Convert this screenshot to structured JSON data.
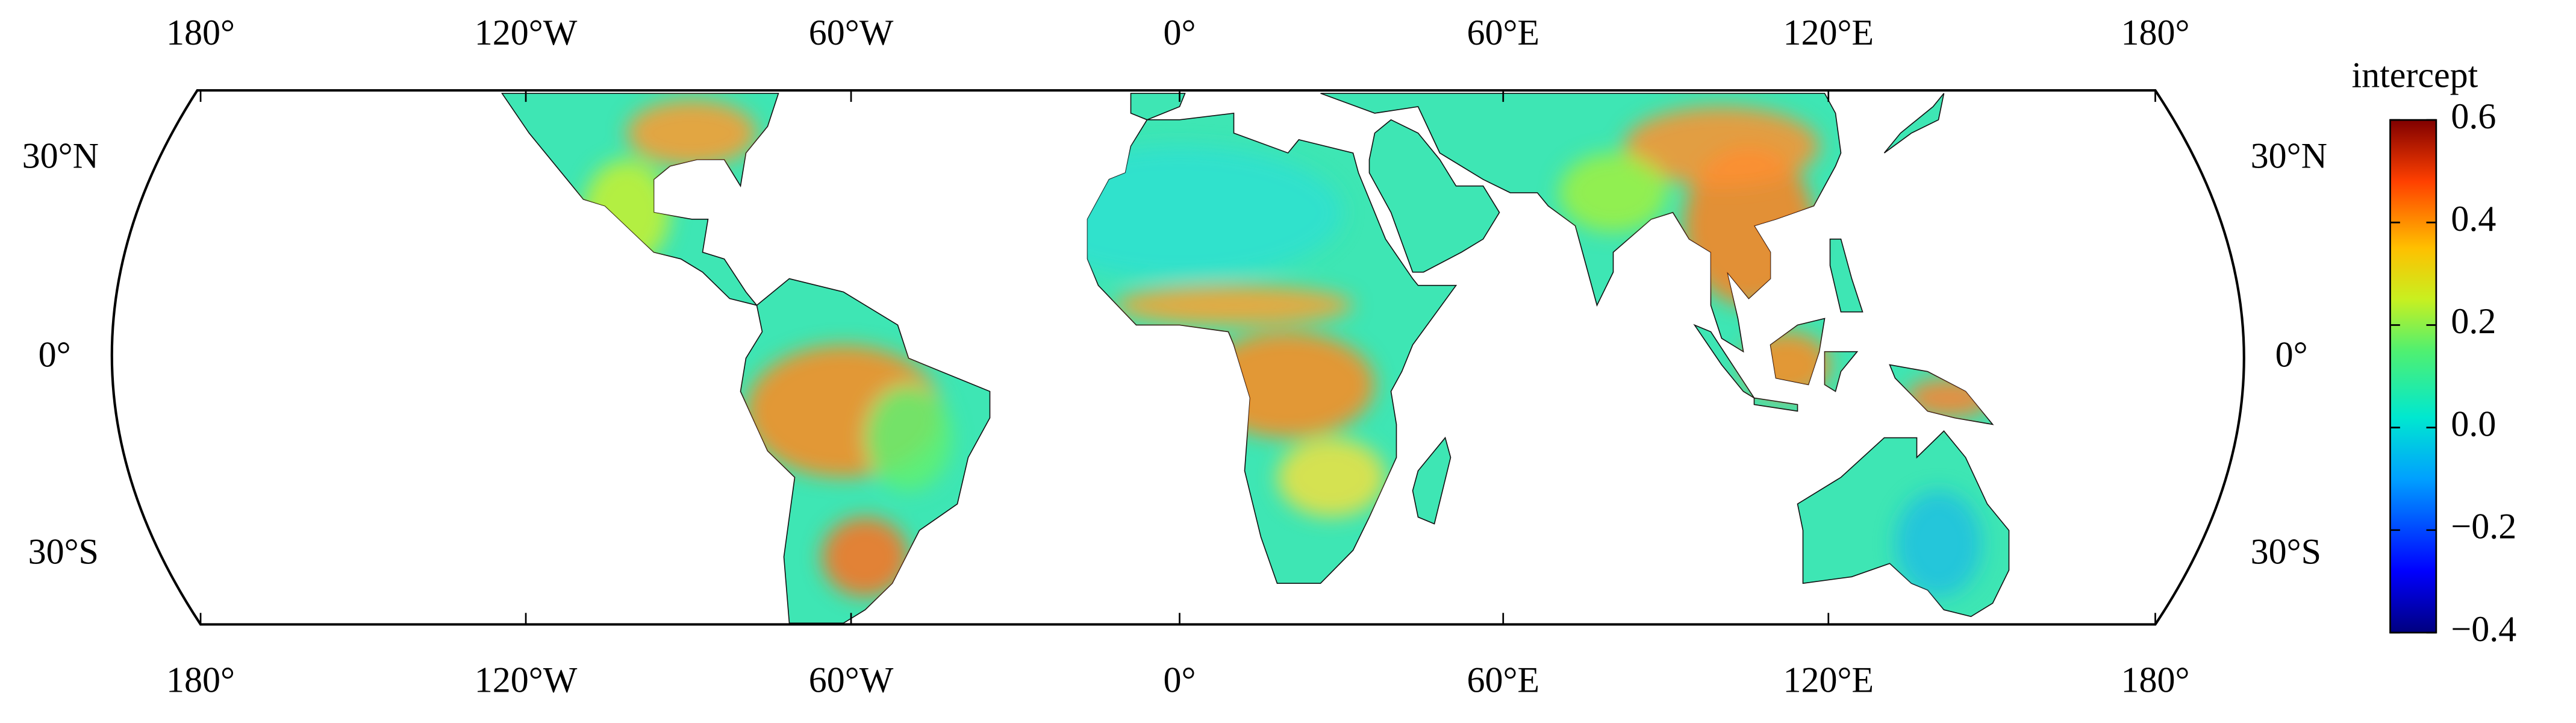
{
  "map": {
    "lon_labels": [
      "180°",
      "120°W",
      "60°W",
      "0°",
      "60°E",
      "120°E",
      "180°"
    ],
    "lat_labels": [
      "30°N",
      "0°",
      "30°S"
    ]
  },
  "colorbar": {
    "title": "intercept",
    "lim": [
      -0.4,
      0.6
    ],
    "ticks": [
      0.6,
      0.4,
      0.2,
      {
        "value": 0,
        "label": "0.0"
      },
      {
        "value": -0.2,
        "label": "−0.2"
      },
      {
        "value": -0.4,
        "label": "−0.4"
      }
    ]
  }
}
